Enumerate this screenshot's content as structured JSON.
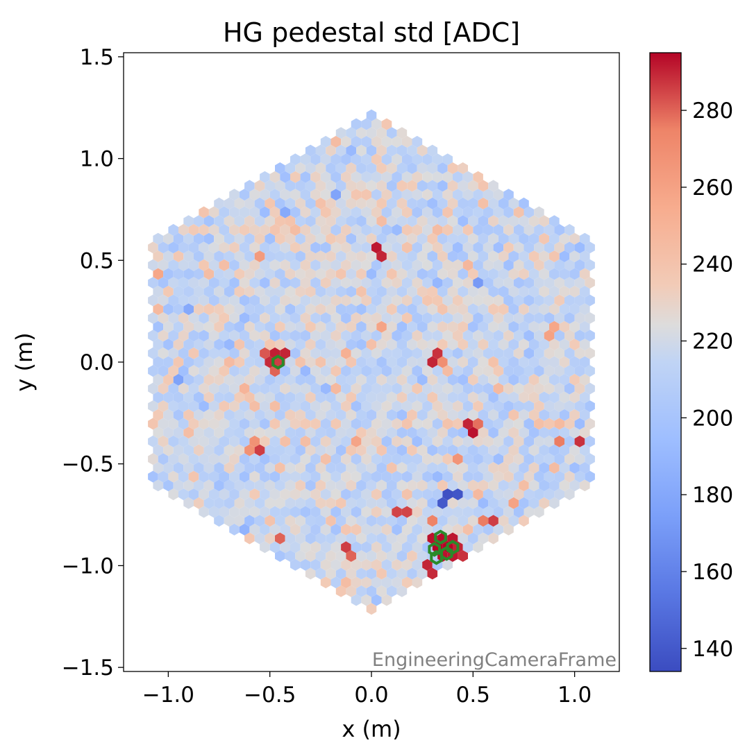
{
  "chart_data": {
    "type": "heatmap",
    "title": "HG pedestal std [ADC]",
    "xlabel": "x  (m)",
    "ylabel": "y  (m)",
    "xlim": [
      -1.22,
      1.22
    ],
    "ylim": [
      -1.52,
      1.52
    ],
    "x_ticks": [
      -1.0,
      -0.5,
      0.0,
      0.5,
      1.0
    ],
    "x_tick_labels": [
      "−1.0",
      "−0.5",
      "0.0",
      "0.5",
      "1.0"
    ],
    "y_ticks": [
      -1.5,
      -1.0,
      -0.5,
      0.0,
      0.5,
      1.0,
      1.5
    ],
    "y_tick_labels": [
      "−1.5",
      "−1.0",
      "−0.5",
      "0.0",
      "0.5",
      "1.0",
      "1.5"
    ],
    "colorbar": {
      "range": [
        134,
        295
      ],
      "ticks": [
        140,
        160,
        180,
        200,
        220,
        240,
        260,
        280
      ],
      "tick_labels": [
        "140",
        "160",
        "180",
        "200",
        "220",
        "240",
        "260",
        "280"
      ],
      "colormap": "coolwarm"
    },
    "camera": {
      "shape": "hexagon",
      "pixel_pitch_m": 0.05,
      "baseline_mean": 218,
      "baseline_spread": 14
    },
    "hot_pixels": [
      {
        "x": 0.03,
        "y": 0.56,
        "value": 292
      },
      {
        "x": 0.05,
        "y": 0.52,
        "value": 290
      },
      {
        "x": -0.47,
        "y": 0.05,
        "value": 291
      },
      {
        "x": -0.42,
        "y": 0.03,
        "value": 290
      },
      {
        "x": -0.5,
        "y": 0.0,
        "value": 289
      },
      {
        "x": -0.51,
        "y": 0.04,
        "value": 282
      },
      {
        "x": -0.44,
        "y": -0.01,
        "value": 286
      },
      {
        "x": -0.48,
        "y": -0.03,
        "value": 280
      },
      {
        "x": 0.31,
        "y": 0.03,
        "value": 288
      },
      {
        "x": 0.28,
        "y": -0.01,
        "value": 290
      },
      {
        "x": 0.33,
        "y": 0.0,
        "value": 270
      },
      {
        "x": 0.48,
        "y": -0.31,
        "value": 290
      },
      {
        "x": 0.48,
        "y": -0.36,
        "value": 293
      },
      {
        "x": 0.52,
        "y": -0.33,
        "value": 278
      },
      {
        "x": -0.55,
        "y": -0.42,
        "value": 286
      },
      {
        "x": -0.59,
        "y": -0.41,
        "value": 268
      },
      {
        "x": 1.02,
        "y": -0.41,
        "value": 288
      },
      {
        "x": 0.91,
        "y": -0.39,
        "value": 276
      },
      {
        "x": 0.61,
        "y": -0.77,
        "value": 286
      },
      {
        "x": 0.56,
        "y": -0.76,
        "value": 276
      },
      {
        "x": 0.15,
        "y": -0.73,
        "value": 285
      },
      {
        "x": -0.11,
        "y": -0.91,
        "value": 286
      },
      {
        "x": -0.1,
        "y": -0.95,
        "value": 280
      },
      {
        "x": -0.45,
        "y": -0.84,
        "value": 280
      },
      {
        "x": 0.3,
        "y": -0.77,
        "value": 275
      },
      {
        "x": 0.33,
        "y": -0.86,
        "value": 294
      },
      {
        "x": 0.38,
        "y": -0.86,
        "value": 292
      },
      {
        "x": 0.43,
        "y": -0.89,
        "value": 290
      },
      {
        "x": 0.3,
        "y": -0.89,
        "value": 293
      },
      {
        "x": 0.35,
        "y": -0.91,
        "value": 295
      },
      {
        "x": 0.41,
        "y": -0.92,
        "value": 294
      },
      {
        "x": 0.33,
        "y": -0.95,
        "value": 293
      },
      {
        "x": 0.38,
        "y": -0.95,
        "value": 292
      },
      {
        "x": 0.28,
        "y": -0.98,
        "value": 290
      },
      {
        "x": 0.43,
        "y": -0.97,
        "value": 288
      },
      {
        "x": 0.31,
        "y": -1.03,
        "value": 289
      },
      {
        "x": 0.36,
        "y": -1.03,
        "value": 292
      },
      {
        "x": 0.4,
        "y": -1.01,
        "value": 286
      }
    ],
    "cold_pixels": [
      {
        "x": 0.36,
        "y": -0.64,
        "value": 136
      },
      {
        "x": 0.4,
        "y": -0.66,
        "value": 138
      },
      {
        "x": 0.37,
        "y": -0.68,
        "value": 140
      }
    ],
    "highlighted_pixels": [
      {
        "x": -0.46,
        "y": 0.0
      },
      {
        "x": 0.34,
        "y": -0.86
      },
      {
        "x": 0.31,
        "y": -0.92
      },
      {
        "x": 0.37,
        "y": -0.94
      },
      {
        "x": 0.4,
        "y": -0.91
      },
      {
        "x": 0.32,
        "y": -0.96
      }
    ],
    "highlight_color": "#2a8a2a",
    "frame_label": "EngineeringCameraFrame"
  }
}
